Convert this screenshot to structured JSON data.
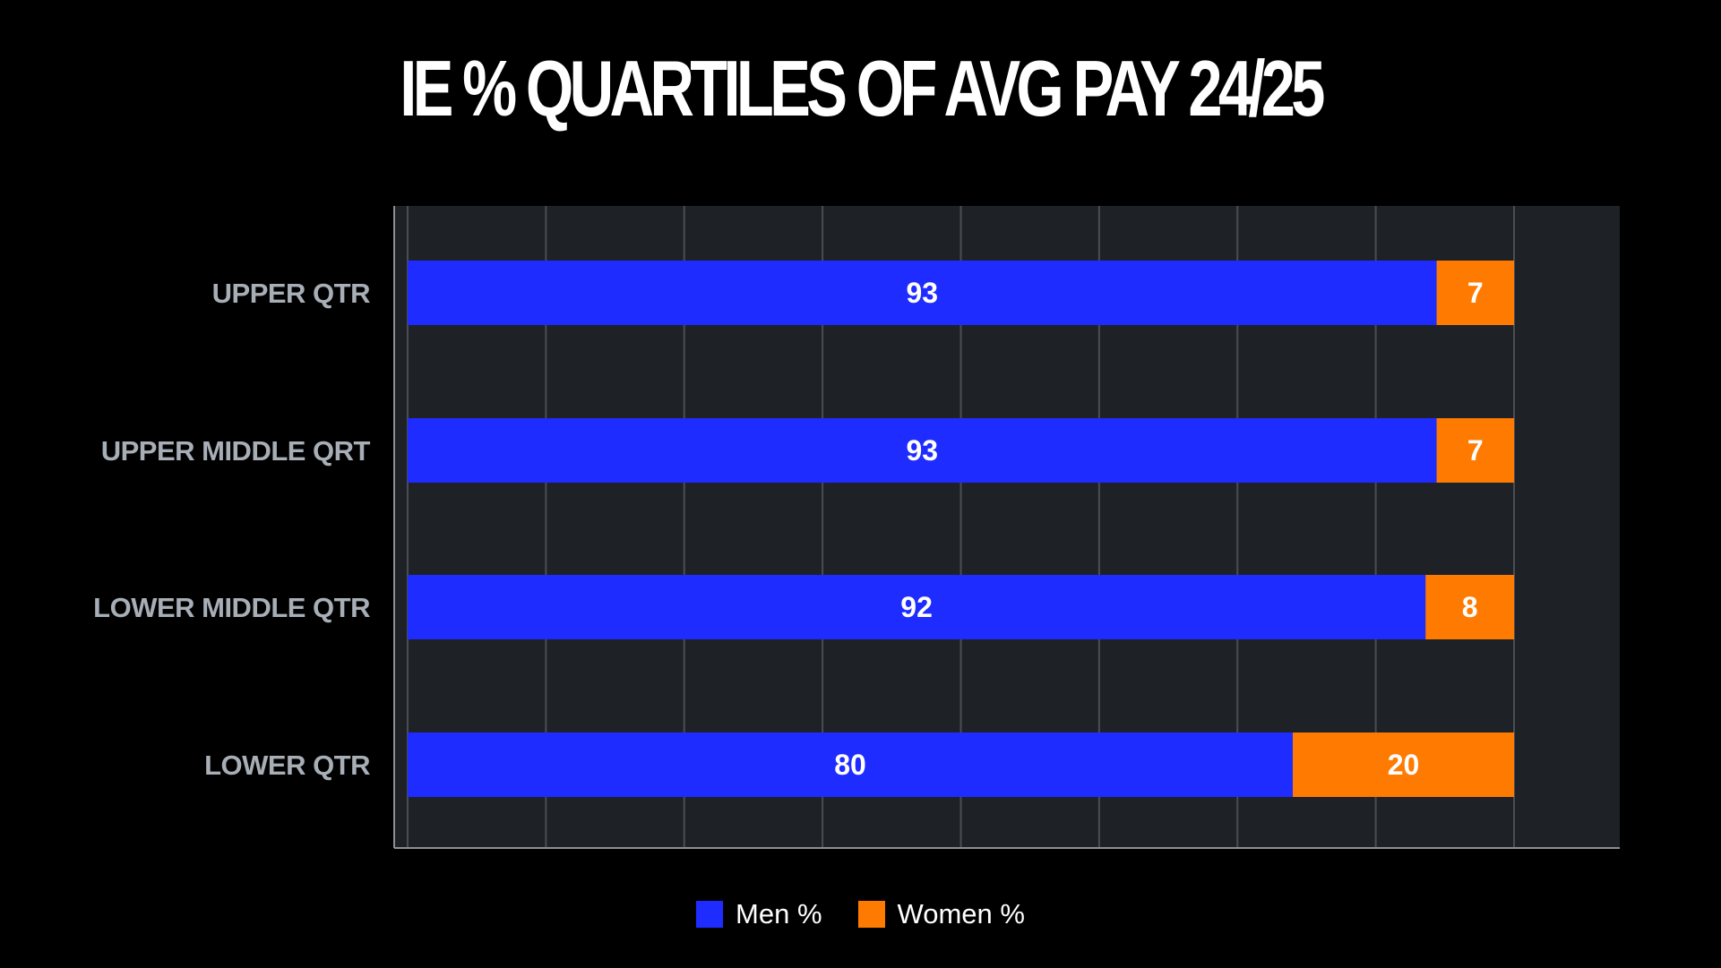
{
  "chart_data": {
    "type": "bar",
    "orientation": "horizontal",
    "stacked": true,
    "title": "IE % QUARTILES OF AVG PAY 24/25",
    "categories": [
      "UPPER QTR",
      "UPPER MIDDLE QRT",
      "LOWER MIDDLE QTR",
      "LOWER QTR"
    ],
    "series": [
      {
        "name": "Men %",
        "values": [
          93,
          93,
          92,
          80
        ],
        "color": "#1f2cff"
      },
      {
        "name": "Women %",
        "values": [
          7,
          7,
          8,
          20
        ],
        "color": "#ff7a00"
      }
    ],
    "xlim": [
      0,
      110
    ],
    "grid": true,
    "legend": "bottom-center",
    "data_labels": true
  },
  "colors": {
    "background": "#000000",
    "plot_area": "#1e2126",
    "grid": "#4a4d52",
    "category_label": "#a7aeb6",
    "value_label": "#ffffff"
  }
}
